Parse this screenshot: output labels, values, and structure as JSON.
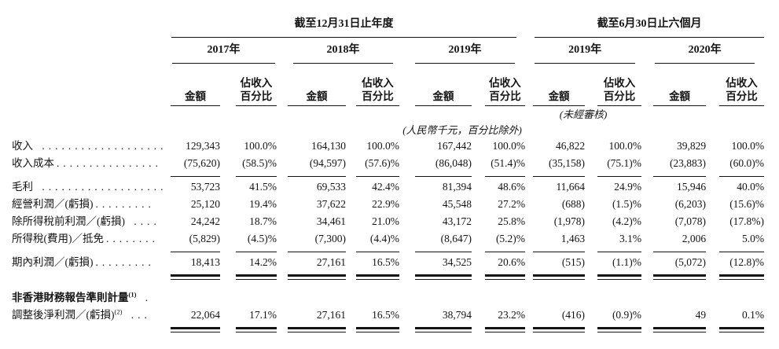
{
  "meta": {
    "background_color": "#ffffff",
    "text_color": "#141414",
    "rule_color": "#141414"
  },
  "header": {
    "annual_period_title": "截至12月31日止年度",
    "interim_period_title": "截至6月30日止六個月",
    "annual_years": [
      "2017年",
      "2018年",
      "2019年"
    ],
    "interim_years": [
      "2019年",
      "2020年"
    ],
    "amount_header": "金額",
    "pct_header_line1": "佔收入",
    "pct_header_line2": "百分比",
    "unaudited_note": "(未經審核)",
    "unit_note": "(人民幣千元，百分比除外)"
  },
  "rows": [
    {
      "label": "收入",
      "sup": "",
      "dots": " ...................",
      "bold": false,
      "space_before": false,
      "rule_after": "none",
      "values": [
        "129,343",
        "100.0%",
        "164,130",
        "100.0%",
        "167,442",
        "100.0%",
        "46,822",
        "100.0%",
        "39,829",
        "100.0%"
      ]
    },
    {
      "label": "收入成本",
      "sup": "",
      "dots": "................",
      "bold": false,
      "space_before": false,
      "rule_after": "single",
      "values": [
        "(75,620)",
        "(58.5)%",
        "(94,597)",
        "(57.6)%",
        "(86,048)",
        "(51.4)%",
        "(35,158)",
        "(75.1)%",
        "(23,883)",
        "(60.0)%"
      ]
    },
    {
      "label": "毛利",
      "sup": "",
      "dots": " ...................",
      "bold": false,
      "space_before": false,
      "rule_after": "none",
      "values": [
        "53,723",
        "41.5%",
        "69,533",
        "42.4%",
        "81,394",
        "48.6%",
        "11,664",
        "24.9%",
        "15,946",
        "40.0%"
      ]
    },
    {
      "label": "經營利潤／(虧損)",
      "sup": "",
      "dots": ".........",
      "bold": false,
      "space_before": false,
      "rule_after": "none",
      "values": [
        "25,120",
        "19.4%",
        "37,622",
        "22.9%",
        "45,548",
        "27.2%",
        "(688)",
        "(1.5)%",
        "(6,203)",
        "(15.6)%"
      ]
    },
    {
      "label": "除所得稅前利潤／(虧損)",
      "sup": "",
      "dots": " ....",
      "bold": false,
      "space_before": false,
      "rule_after": "none",
      "values": [
        "24,242",
        "18.7%",
        "34,461",
        "21.0%",
        "43,172",
        "25.8%",
        "(1,978)",
        "(4.2)%",
        "(7,078)",
        "(17.8%)"
      ]
    },
    {
      "label": "所得稅(費用)／抵免",
      "sup": "",
      "dots": "........",
      "bold": false,
      "space_before": false,
      "rule_after": "single",
      "values": [
        "(5,829)",
        "(4.5)%",
        "(7,300)",
        "(4.4)%",
        "(8,647)",
        "(5.2)%",
        "1,463",
        "3.1%",
        "2,006",
        "5.0%"
      ]
    },
    {
      "label": "期內利潤／(虧損)",
      "sup": "",
      "dots": ".........",
      "bold": false,
      "space_before": false,
      "rule_after": "double",
      "values": [
        "18,413",
        "14.2%",
        "27,161",
        "16.5%",
        "34,525",
        "20.6%",
        "(515)",
        "(1.1)%",
        "(5,072)",
        "(12.8)%"
      ]
    },
    {
      "label": "非香港財務報告準則計量",
      "sup": "(1)",
      "dots": " .",
      "bold": true,
      "space_before": true,
      "rule_after": "none",
      "values": [
        "",
        "",
        "",
        "",
        "",
        "",
        "",
        "",
        "",
        ""
      ]
    },
    {
      "label": "調整後淨利潤／(虧損)",
      "sup": "(2)",
      "dots": " ...",
      "bold": false,
      "space_before": false,
      "rule_after": "double",
      "values": [
        "22,064",
        "17.1%",
        "27,161",
        "16.5%",
        "38,794",
        "23.2%",
        "(416)",
        "(0.9)%",
        "49",
        "0.1%"
      ]
    }
  ]
}
